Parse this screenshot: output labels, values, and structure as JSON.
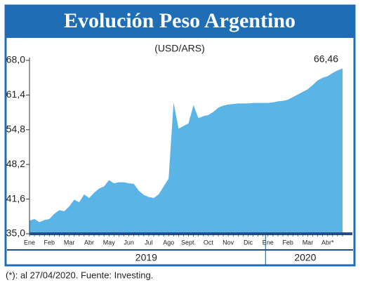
{
  "chart_data": {
    "type": "area",
    "title": "Evolución Peso Argentino",
    "subtitle": "(USD/ARS)",
    "annotation": "66,46",
    "footnote": "(*): al 27/04/2020. Fuente: Investing.",
    "color": "#5ab5e6",
    "categories": [
      "Ene",
      null,
      null,
      null,
      "Feb",
      null,
      null,
      null,
      "Mar",
      null,
      null,
      null,
      "Abr",
      null,
      null,
      null,
      "May",
      null,
      null,
      null,
      "Jun",
      null,
      null,
      null,
      "Jul",
      null,
      null,
      null,
      "Ago",
      null,
      null,
      null,
      "Sept.",
      null,
      null,
      null,
      "Oct",
      null,
      null,
      null,
      "Nov",
      null,
      null,
      null,
      "Dic",
      null,
      null,
      null,
      "Ene",
      null,
      null,
      null,
      "Feb",
      null,
      null,
      null,
      "Mar",
      null,
      null,
      null,
      "Abr*",
      null,
      null,
      null
    ],
    "values": [
      37.5,
      37.8,
      37.2,
      37.6,
      37.8,
      38.8,
      39.5,
      39.3,
      40.2,
      41.5,
      41.0,
      42.5,
      41.8,
      42.8,
      43.6,
      44.0,
      45.2,
      44.6,
      44.8,
      44.8,
      44.6,
      44.5,
      43.2,
      42.4,
      42.0,
      41.8,
      42.5,
      44.0,
      45.5,
      60.0,
      55.0,
      55.5,
      56.0,
      59.5,
      57.0,
      57.4,
      57.6,
      58.2,
      59.0,
      59.4,
      59.6,
      59.7,
      59.8,
      59.8,
      59.8,
      59.9,
      59.9,
      59.9,
      59.9,
      60.0,
      60.2,
      60.3,
      60.5,
      61.0,
      61.5,
      62.0,
      62.5,
      63.3,
      64.2,
      64.7,
      65.0,
      65.6,
      66.1,
      66.46
    ],
    "years": [
      {
        "label": "2019",
        "count": 48
      },
      {
        "label": "2020",
        "count": 16
      }
    ],
    "ylim": [
      35,
      68
    ],
    "yticks": [
      {
        "value": 35,
        "label": "35,0"
      },
      {
        "value": 41.6,
        "label": "41,6"
      },
      {
        "value": 48.2,
        "label": "48,2"
      },
      {
        "value": 54.8,
        "label": "54,8"
      },
      {
        "value": 61.4,
        "label": "61,4"
      },
      {
        "value": 68,
        "label": "68,0"
      }
    ]
  }
}
